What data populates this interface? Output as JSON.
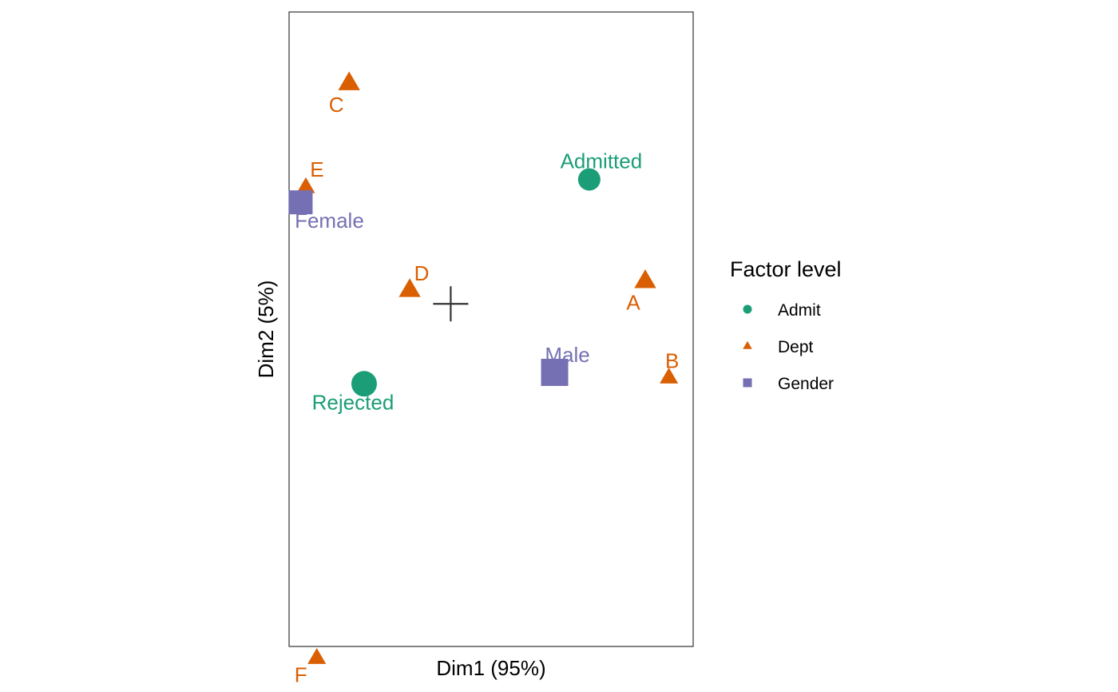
{
  "chart_data": {
    "type": "scatter",
    "title": "",
    "xlabel": "Dim1 (95%)",
    "ylabel": "Dim2 (5%)",
    "xlim": [
      -0.28,
      0.42
    ],
    "ylim": [
      -0.27,
      0.23
    ],
    "grid": false,
    "legend_position": "right",
    "legend_title": "Factor level",
    "origin_marker": [
      0,
      0
    ],
    "series": [
      {
        "name": "Admit",
        "color": "#1b9e77",
        "shape": "circle",
        "points": [
          {
            "label": "Admitted",
            "x": 0.24,
            "y": 0.098
          },
          {
            "label": "Rejected",
            "x": -0.15,
            "y": -0.063
          }
        ]
      },
      {
        "name": "Dept",
        "color": "#d95f02",
        "shape": "triangle",
        "points": [
          {
            "label": "A",
            "x": 0.337,
            "y": 0.018
          },
          {
            "label": "B",
            "x": 0.378,
            "y": -0.058
          },
          {
            "label": "C",
            "x": -0.176,
            "y": 0.174
          },
          {
            "label": "D",
            "x": -0.071,
            "y": 0.011
          },
          {
            "label": "E",
            "x": -0.251,
            "y": 0.092
          },
          {
            "label": "F",
            "x": -0.232,
            "y": -0.279
          }
        ]
      },
      {
        "name": "Gender",
        "color": "#7570b3",
        "shape": "square",
        "points": [
          {
            "label": "Female",
            "x": -0.26,
            "y": 0.08
          },
          {
            "label": "Male",
            "x": 0.18,
            "y": -0.054
          }
        ]
      }
    ]
  }
}
